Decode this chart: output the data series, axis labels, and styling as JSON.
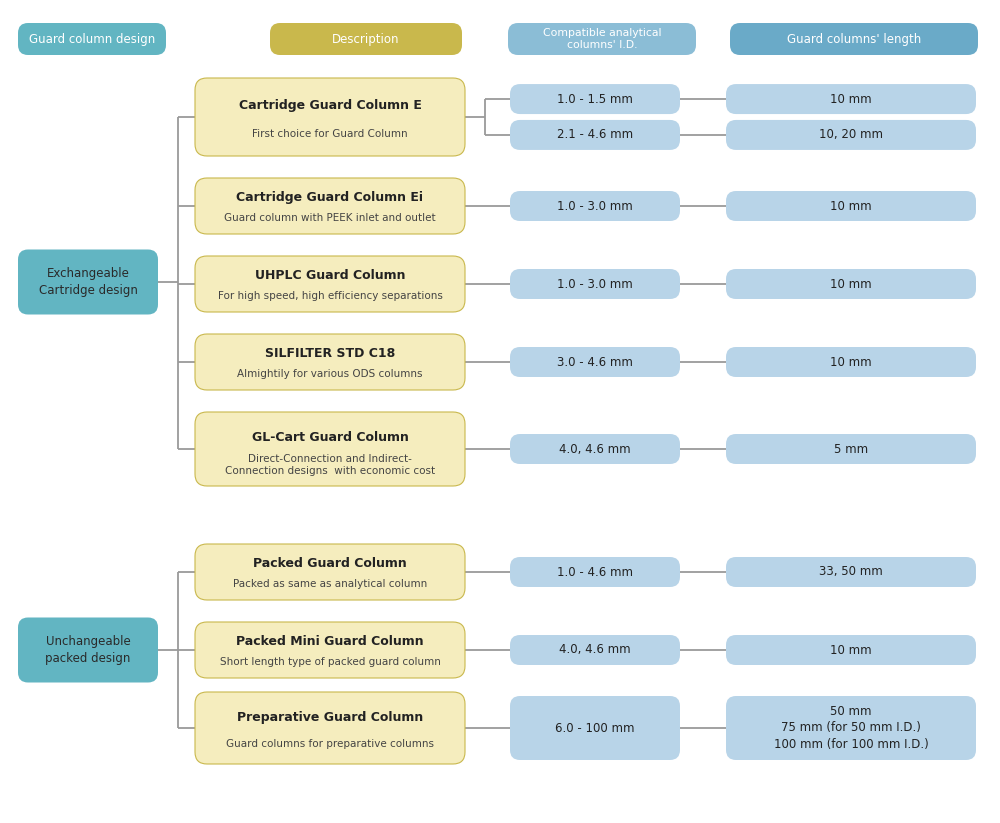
{
  "bg_color": "#ffffff",
  "teal_color": "#62b5c2",
  "gold_color": "#c9b84c",
  "gold_light_color": "#f5edbe",
  "blue_light_color": "#b8d4e8",
  "blue_mid_color": "#8bbdd6",
  "blue_dark_color": "#6aaac8",
  "line_color": "#9a9a9a",
  "header_row": {
    "col1": "Guard column design",
    "col2": "Description",
    "col3": "Compatible analytical\ncolumns' I.D.",
    "col4": "Guard columns' length"
  },
  "group1": {
    "label": "Exchangeable\nCartridge design",
    "items": [
      {
        "title": "Cartridge Guard Column E",
        "subtitle": "First choice for Guard Column",
        "sub_rows": [
          {
            "id": "1.0 - 1.5 mm",
            "length": "10 mm"
          },
          {
            "id": "2.1 - 4.6 mm",
            "length": "10, 20 mm"
          }
        ]
      },
      {
        "title": "Cartridge Guard Column Ei",
        "subtitle": "Guard column with PEEK inlet and outlet",
        "sub_rows": [
          {
            "id": "1.0 - 3.0 mm",
            "length": "10 mm"
          }
        ]
      },
      {
        "title": "UHPLC Guard Column",
        "subtitle": "For high speed, high efficiency separations",
        "sub_rows": [
          {
            "id": "1.0 - 3.0 mm",
            "length": "10 mm"
          }
        ]
      },
      {
        "title": "SILFILTER STD C18",
        "subtitle": "Almightily for various ODS columns",
        "sub_rows": [
          {
            "id": "3.0 - 4.6 mm",
            "length": "10 mm"
          }
        ]
      },
      {
        "title": "GL-Cart Guard Column",
        "subtitle": "Direct-Connection and Indirect-\nConnection designs  with economic cost",
        "sub_rows": [
          {
            "id": "4.0, 4.6 mm",
            "length": "5 mm"
          }
        ]
      }
    ]
  },
  "group2": {
    "label": "Unchangeable\npacked design",
    "items": [
      {
        "title": "Packed Guard Column",
        "subtitle": "Packed as same as analytical column",
        "sub_rows": [
          {
            "id": "1.0 - 4.6 mm",
            "length": "33, 50 mm"
          }
        ]
      },
      {
        "title": "Packed Mini Guard Column",
        "subtitle": "Short length type of packed guard column",
        "sub_rows": [
          {
            "id": "4.0, 4.6 mm",
            "length": "10 mm"
          }
        ]
      },
      {
        "title": "Preparative Guard Column",
        "subtitle": "Guard columns for preparative columns",
        "sub_rows": [
          {
            "id": "6.0 - 100 mm",
            "length": "50 mm\n75 mm (for 50 mm I.D.)\n100 mm (for 100 mm I.D.)"
          }
        ]
      }
    ]
  }
}
